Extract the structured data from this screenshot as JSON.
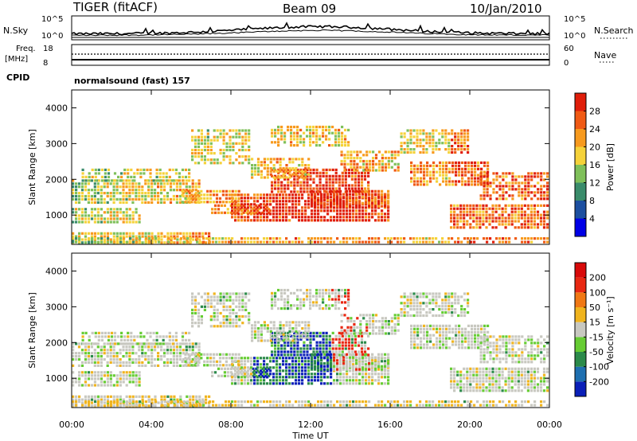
{
  "header": {
    "radar": "TIGER (fitACF)",
    "beam": "Beam 09",
    "date": "10/Jan/2010"
  },
  "noise_panel": {
    "left_label": "N.Sky",
    "left_ticks": [
      "10^5",
      "10^0"
    ],
    "right_ticks": [
      "10^5",
      "10^0"
    ],
    "right_label": "N.Search"
  },
  "freq_panel": {
    "left_label_1": "Freq.",
    "left_label_2": "[MHz]",
    "left_ticks": [
      "18",
      "8"
    ],
    "right_ticks": [
      "60",
      "0"
    ],
    "right_label": "Nave"
  },
  "cpid": {
    "label": "CPID",
    "text": "normalsound (fast) 157"
  },
  "chart_data": [
    {
      "type": "heatmap",
      "title": "",
      "ylabel": "Slant Range [km]",
      "xlabel": "",
      "ylim": [
        180,
        4500
      ],
      "yticks": [
        "4000",
        "3000",
        "2000",
        "1000"
      ],
      "xlim": [
        "00:00",
        "24:00"
      ],
      "colorbar": {
        "label": "Power [dB]",
        "ticks": [
          "28",
          "24",
          "20",
          "16",
          "12",
          "8",
          "4"
        ],
        "colors": [
          "#0000e6",
          "#1c4fa0",
          "#3a8c6b",
          "#7fc05a",
          "#f5d23a",
          "#f79a1e",
          "#f05a14",
          "#e01e0a"
        ]
      }
    },
    {
      "type": "heatmap",
      "title": "",
      "ylabel": "Slant Range [km]",
      "xlabel": "Time UT",
      "ylim": [
        180,
        4500
      ],
      "yticks": [
        "4000",
        "3000",
        "2000",
        "1000"
      ],
      "xlim": [
        "00:00",
        "24:00"
      ],
      "xticks": [
        "00:00",
        "04:00",
        "08:00",
        "12:00",
        "16:00",
        "20:00",
        "00:00"
      ],
      "colorbar": {
        "label": "Velocity [m s⁻¹]",
        "ticks": [
          "200",
          "100",
          "50",
          "15",
          "-15",
          "-50",
          "-100",
          "-200"
        ],
        "colors": [
          "#0a1fb8",
          "#1e6fb0",
          "#2b8a4a",
          "#66cc33",
          "#c8c8c0",
          "#f0b41e",
          "#f07814",
          "#e82812",
          "#d80a0a"
        ]
      }
    }
  ]
}
